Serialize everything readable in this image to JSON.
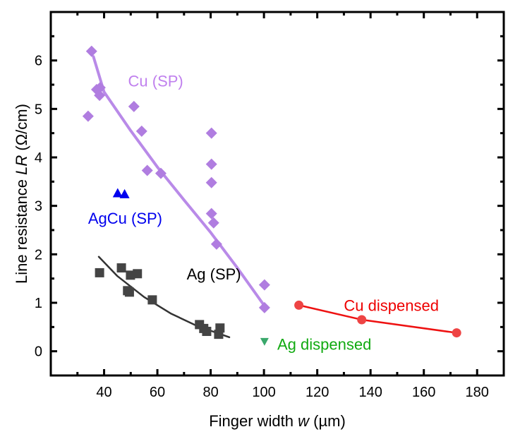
{
  "chart_data": {
    "type": "scatter",
    "title": "",
    "xlabel": {
      "prefix": "Finger width ",
      "italic": "w",
      "suffix": " (µm)"
    },
    "ylabel": {
      "prefix": "Line resistance ",
      "italic": "LR",
      "suffix": " (Ω/cm)"
    },
    "xlim": [
      20,
      190
    ],
    "ylim": [
      -0.5,
      7.0
    ],
    "xticks": [
      40,
      60,
      80,
      100,
      120,
      140,
      160,
      180
    ],
    "xminor": [
      30,
      50,
      70,
      90,
      110,
      130,
      150,
      170
    ],
    "yticks": [
      0,
      1,
      2,
      3,
      4,
      5,
      6
    ],
    "yminor": [
      0.5,
      1.5,
      2.5,
      3.5,
      4.5,
      5.5,
      6.5
    ],
    "grid": false,
    "legend": "none",
    "series": [
      {
        "name": "Cu (SP)",
        "color": "#b07de0",
        "marker": "diamond",
        "points": [
          [
            35.3,
            6.19
          ],
          [
            34.0,
            4.85
          ],
          [
            37.2,
            5.4
          ],
          [
            38.3,
            5.28
          ],
          [
            38.5,
            5.44
          ],
          [
            51.2,
            5.05
          ],
          [
            54.1,
            4.54
          ],
          [
            56.2,
            3.73
          ],
          [
            61.3,
            3.67
          ],
          [
            80.3,
            4.5
          ],
          [
            80.3,
            3.86
          ],
          [
            80.3,
            3.48
          ],
          [
            80.3,
            2.84
          ],
          [
            81.1,
            2.65
          ],
          [
            82.2,
            2.21
          ],
          [
            100.2,
            1.37
          ],
          [
            100.2,
            0.9
          ]
        ],
        "fit": [
          [
            36,
            6.08
          ],
          [
            40,
            5.35
          ],
          [
            50,
            4.55
          ],
          [
            60,
            3.8
          ],
          [
            70,
            3.12
          ],
          [
            80,
            2.45
          ],
          [
            90,
            1.72
          ],
          [
            100,
            0.95
          ]
        ],
        "fit_color": "#b98ae8"
      },
      {
        "name": "AgCu (SP)",
        "color": "#0000ee",
        "marker": "triangle-up",
        "points": [
          [
            45.1,
            3.25
          ],
          [
            47.7,
            3.23
          ]
        ]
      },
      {
        "name": "Ag (SP)",
        "color": "#444444",
        "marker": "square",
        "points": [
          [
            38.3,
            1.62
          ],
          [
            46.5,
            1.72
          ],
          [
            49.9,
            1.57
          ],
          [
            52.5,
            1.6
          ],
          [
            48.8,
            1.25
          ],
          [
            49.5,
            1.22
          ],
          [
            58.1,
            1.06
          ],
          [
            75.8,
            0.55
          ],
          [
            77.4,
            0.47
          ],
          [
            78.5,
            0.41
          ],
          [
            83.0,
            0.35
          ],
          [
            83.5,
            0.48
          ]
        ],
        "fit": [
          [
            38,
            1.95
          ],
          [
            45,
            1.55
          ],
          [
            55,
            1.12
          ],
          [
            65,
            0.78
          ],
          [
            75,
            0.52
          ],
          [
            87,
            0.29
          ]
        ],
        "fit_color": "#333333"
      },
      {
        "name": "Ag dispensed",
        "color": "#3aa86b",
        "marker": "triangle-down",
        "points": [
          [
            100.2,
            0.2
          ]
        ]
      },
      {
        "name": "Cu dispensed",
        "color": "#ee4444",
        "marker": "circle",
        "points": [
          [
            113.1,
            0.95
          ],
          [
            136.7,
            0.65
          ],
          [
            172.3,
            0.38
          ]
        ],
        "fit": [
          [
            113.1,
            0.95
          ],
          [
            136.7,
            0.65
          ],
          [
            172.3,
            0.38
          ]
        ],
        "fit_color": "#ee1111"
      }
    ],
    "annotations": [
      {
        "text": "Cu (SP)",
        "color": "#c080ee",
        "x": 49,
        "y": 5.58
      },
      {
        "text": "AgCu (SP)",
        "color": "#0000ee",
        "x": 34,
        "y": 2.75
      },
      {
        "text": "Ag (SP)",
        "color": "#000000",
        "x": 71,
        "y": 1.6
      },
      {
        "text": "Ag dispensed",
        "color": "#11aa11",
        "x": 105,
        "y": 0.15
      },
      {
        "text": "Cu dispensed",
        "color": "#ee0000",
        "x": 130,
        "y": 0.95
      }
    ]
  }
}
